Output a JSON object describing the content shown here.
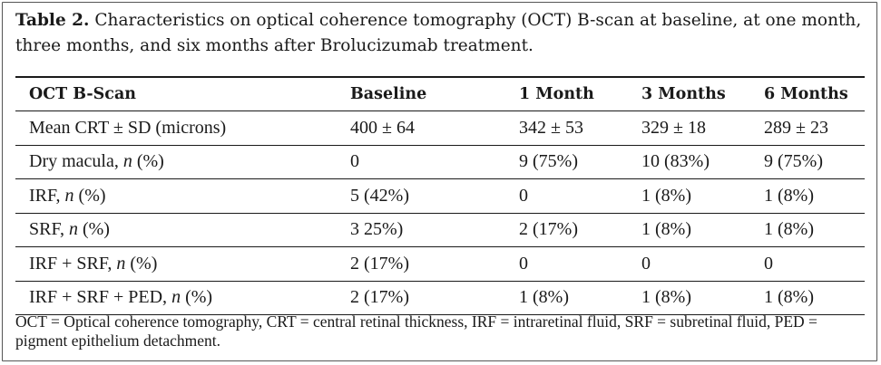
{
  "caption": {
    "label": "Table 2.",
    "text": "Characteristics on optical coherence tomography (OCT) B-scan at baseline, at one month, three months, and six months after Brolucizumab treatment."
  },
  "table": {
    "headers": [
      "OCT B-Scan",
      "Baseline",
      "1 Month",
      "3 Months",
      "6 Months"
    ],
    "rows": [
      {
        "label": "Mean CRT ± SD (microns)",
        "italic": "",
        "suffix": "",
        "values": [
          "400 ± 64",
          "342 ± 53",
          "329 ± 18",
          "289 ± 23"
        ]
      },
      {
        "label": "Dry macula, ",
        "italic": "n",
        "suffix": " (%)",
        "values": [
          "0",
          "9 (75%)",
          "10 (83%)",
          "9 (75%)"
        ]
      },
      {
        "label": "IRF, ",
        "italic": "n",
        "suffix": " (%)",
        "values": [
          "5 (42%)",
          "0",
          "1 (8%)",
          "1 (8%)"
        ]
      },
      {
        "label": "SRF, ",
        "italic": "n",
        "suffix": " (%)",
        "values": [
          "3 25%)",
          "2 (17%)",
          "1 (8%)",
          "1 (8%)"
        ]
      },
      {
        "label": "IRF + SRF, ",
        "italic": "n",
        "suffix": " (%)",
        "values": [
          "2 (17%)",
          "0",
          "0",
          "0"
        ]
      },
      {
        "label": "IRF + SRF + PED, ",
        "italic": "n",
        "suffix": " (%)",
        "values": [
          "2 (17%)",
          "1 (8%)",
          "1 (8%)",
          "1 (8%)"
        ]
      }
    ]
  },
  "footnote": "OCT = Optical coherence tomography, CRT = central retinal thickness, IRF = intraretinal fluid, SRF = subretinal fluid, PED = pigment epithelium detachment."
}
